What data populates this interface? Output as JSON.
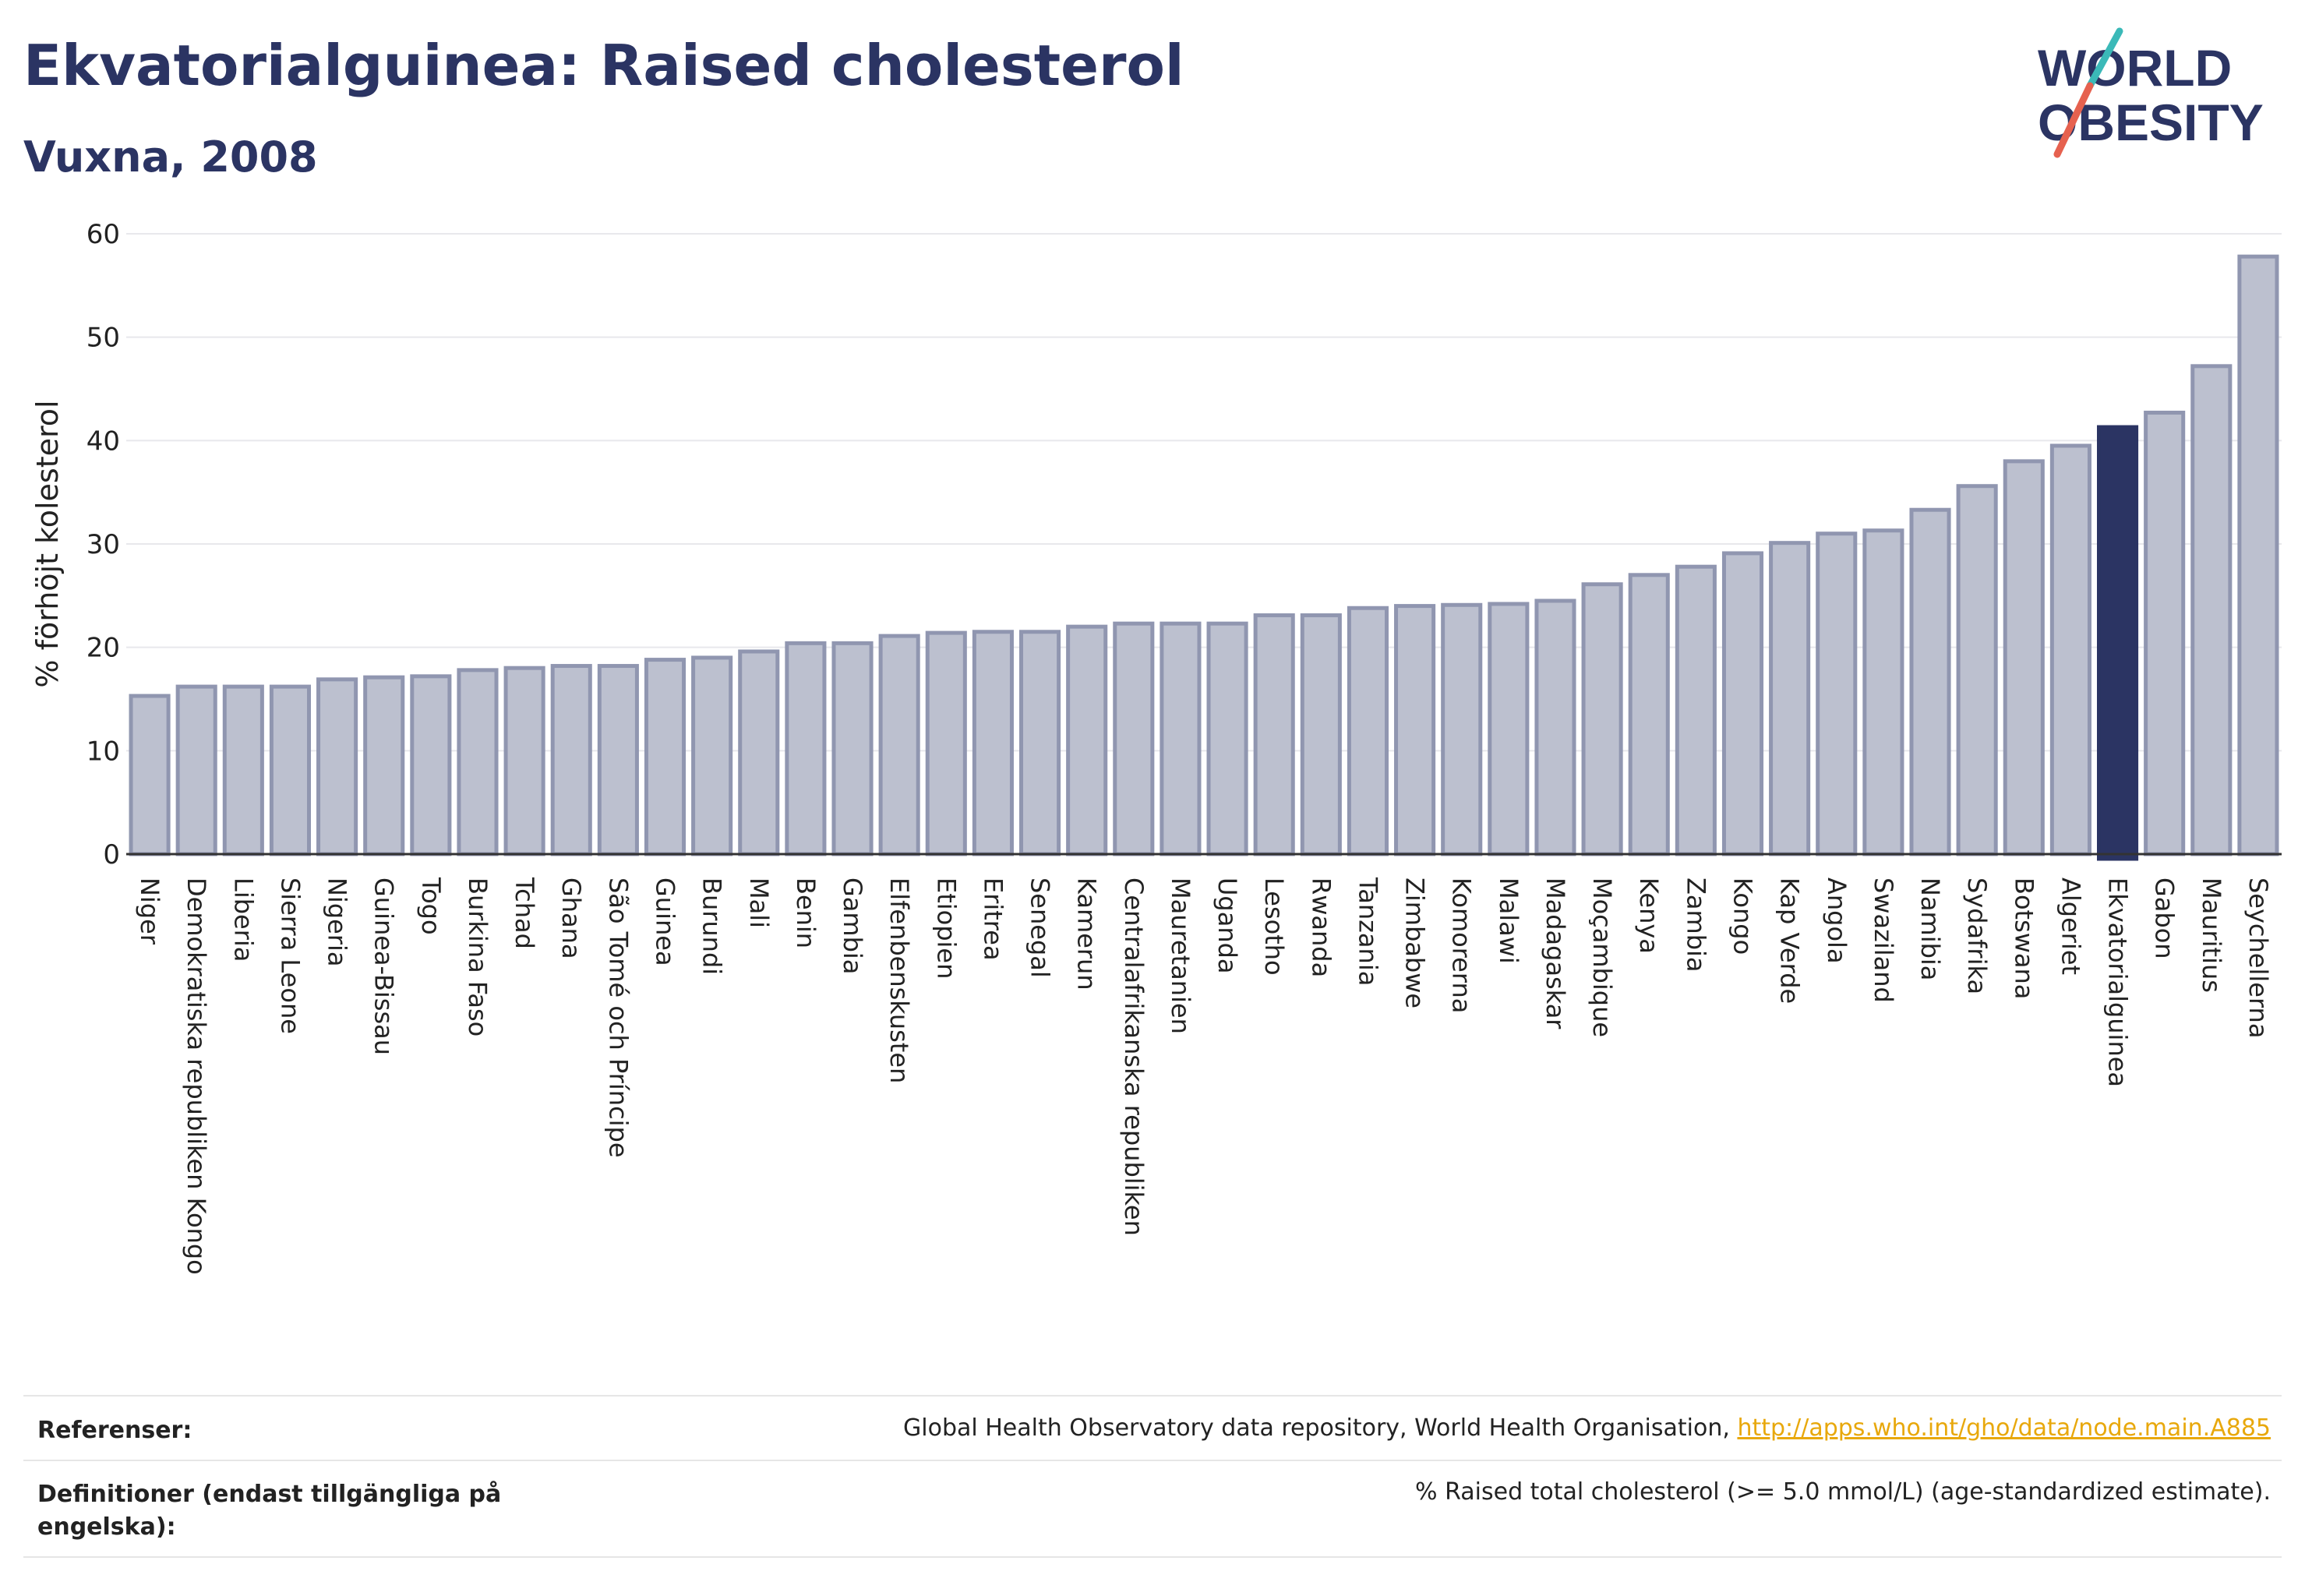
{
  "header": {
    "title": "Ekvatorialguinea: Raised cholesterol",
    "subtitle": "Vuxna, 2008"
  },
  "logo": {
    "line1": "WORLD",
    "line2": "OBESITY",
    "colors": {
      "text": "#2b3463",
      "slash_top": "#3bb9b8",
      "slash_bottom": "#e6614f"
    }
  },
  "footer": {
    "references_label": "Referenser:",
    "references_text": "Global Health Observatory data repository, World Health Organisation, ",
    "references_link": "http://apps.who.int/gho/data/node.main.A885",
    "definitions_label": "Definitioner (endast tillgängliga på engelska):",
    "definitions_text": "% Raised total cholesterol (>= 5.0 mmol/L) (age-standardized estimate)."
  },
  "chart_data": {
    "type": "bar",
    "title": "Ekvatorialguinea: Raised cholesterol",
    "subtitle": "Vuxna, 2008",
    "ylabel": "% förhöjt kolesterol",
    "xlabel": "",
    "ylim": [
      0,
      60
    ],
    "yticks": [
      0,
      10,
      20,
      30,
      40,
      50,
      60
    ],
    "grid": true,
    "highlight": "Ekvatorialguinea",
    "colors": {
      "bar": "#bcc0cf",
      "bar_edge": "#9096b0",
      "highlight": "#2b3463",
      "grid": "#e8e8ec"
    },
    "categories": [
      "Niger",
      "Demokratiska republiken Kongo",
      "Liberia",
      "Sierra Leone",
      "Nigeria",
      "Guinea-Bissau",
      "Togo",
      "Burkina Faso",
      "Tchad",
      "Ghana",
      "São Tomé och Príncipe",
      "Guinea",
      "Burundi",
      "Mali",
      "Benin",
      "Gambia",
      "Elfenbenskusten",
      "Etiopien",
      "Eritrea",
      "Senegal",
      "Kamerun",
      "Centralafrikanska republiken",
      "Mauretanien",
      "Uganda",
      "Lesotho",
      "Rwanda",
      "Tanzania",
      "Zimbabwe",
      "Komorerna",
      "Malawi",
      "Madagaskar",
      "Moçambique",
      "Kenya",
      "Zambia",
      "Kongo",
      "Kap Verde",
      "Angola",
      "Swaziland",
      "Namibia",
      "Sydafrika",
      "Botswana",
      "Algeriet",
      "Ekvatorialguinea",
      "Gabon",
      "Mauritius",
      "Seychellerna"
    ],
    "values": [
      15.3,
      16.2,
      16.2,
      16.2,
      16.9,
      17.1,
      17.2,
      17.8,
      18.0,
      18.2,
      18.2,
      18.8,
      19.0,
      19.6,
      20.4,
      20.4,
      21.1,
      21.4,
      21.5,
      21.5,
      22.0,
      22.3,
      22.3,
      22.3,
      23.1,
      23.1,
      23.8,
      24.0,
      24.1,
      24.2,
      24.5,
      26.1,
      27.0,
      27.8,
      29.1,
      30.1,
      31.0,
      31.3,
      33.3,
      35.6,
      38.0,
      39.5,
      41.3,
      42.7,
      47.2,
      57.8
    ]
  }
}
